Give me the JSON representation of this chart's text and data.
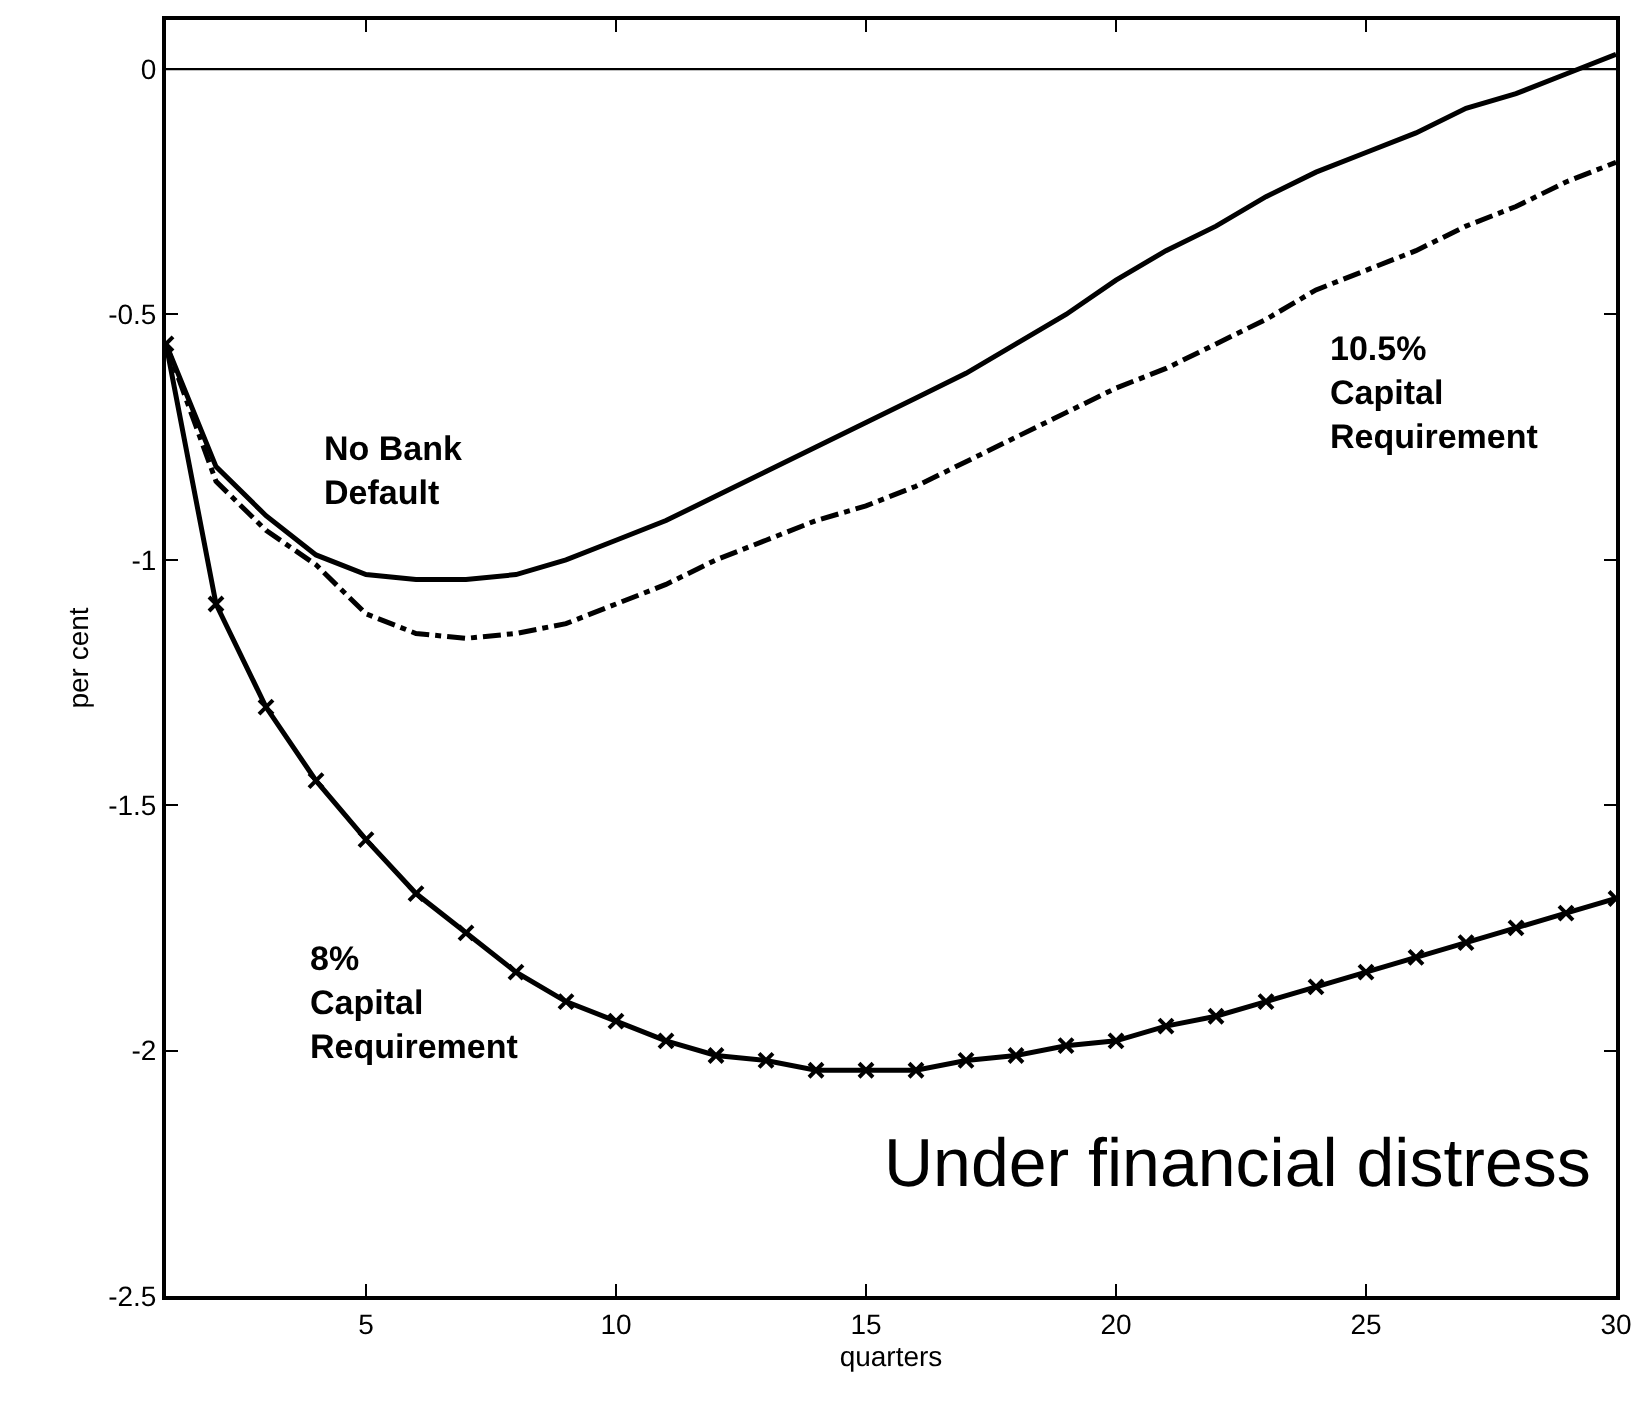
{
  "chart_data": {
    "type": "line",
    "xlabel": "quarters",
    "ylabel": "per cent",
    "x": [
      1,
      2,
      3,
      4,
      5,
      6,
      7,
      8,
      9,
      10,
      11,
      12,
      13,
      14,
      15,
      16,
      17,
      18,
      19,
      20,
      21,
      22,
      23,
      24,
      25,
      26,
      27,
      28,
      29,
      30
    ],
    "series": [
      {
        "name": "No Bank\nDefault",
        "color": "#000000",
        "line_style": "solid",
        "marker": "none",
        "values": [
          -0.56,
          -0.81,
          -0.91,
          -0.99,
          -1.03,
          -1.04,
          -1.04,
          -1.03,
          -1.0,
          -0.96,
          -0.92,
          -0.87,
          -0.82,
          -0.77,
          -0.72,
          -0.67,
          -0.62,
          -0.56,
          -0.5,
          -0.43,
          -0.37,
          -0.32,
          -0.26,
          -0.21,
          -0.17,
          -0.13,
          -0.08,
          -0.05,
          -0.01,
          0.03
        ]
      },
      {
        "name": "10.5%\nCapital\nRequirement",
        "color": "#000000",
        "line_style": "dashdot",
        "marker": "none",
        "values": [
          -0.56,
          -0.84,
          -0.94,
          -1.01,
          -1.11,
          -1.15,
          -1.16,
          -1.15,
          -1.13,
          -1.09,
          -1.05,
          -1.0,
          -0.96,
          -0.92,
          -0.89,
          -0.85,
          -0.8,
          -0.75,
          -0.7,
          -0.65,
          -0.61,
          -0.56,
          -0.51,
          -0.45,
          -0.41,
          -0.37,
          -0.32,
          -0.28,
          -0.23,
          -0.19
        ]
      },
      {
        "name": "8%\nCapital\nRequirement",
        "color": "#000000",
        "line_style": "solid",
        "marker": "cross",
        "values": [
          -0.56,
          -1.09,
          -1.3,
          -1.45,
          -1.57,
          -1.68,
          -1.76,
          -1.84,
          -1.9,
          -1.94,
          -1.98,
          -2.01,
          -2.02,
          -2.04,
          -2.04,
          -2.04,
          -2.02,
          -2.01,
          -1.99,
          -1.98,
          -1.95,
          -1.93,
          -1.9,
          -1.87,
          -1.84,
          -1.81,
          -1.78,
          -1.75,
          -1.72,
          -1.69
        ]
      }
    ],
    "xlim": [
      1,
      30
    ],
    "ylim": [
      -2.5,
      0.1
    ],
    "xticks": [
      5,
      10,
      15,
      20,
      25,
      30
    ],
    "yticks": [
      -2.5,
      -2,
      -1.5,
      -1,
      -0.5,
      0
    ],
    "ref_lines": [
      {
        "axis": "y",
        "value": 0,
        "color": "#000000"
      }
    ],
    "annotations": [
      "Under financial distress"
    ],
    "grid": false,
    "legend": false
  }
}
